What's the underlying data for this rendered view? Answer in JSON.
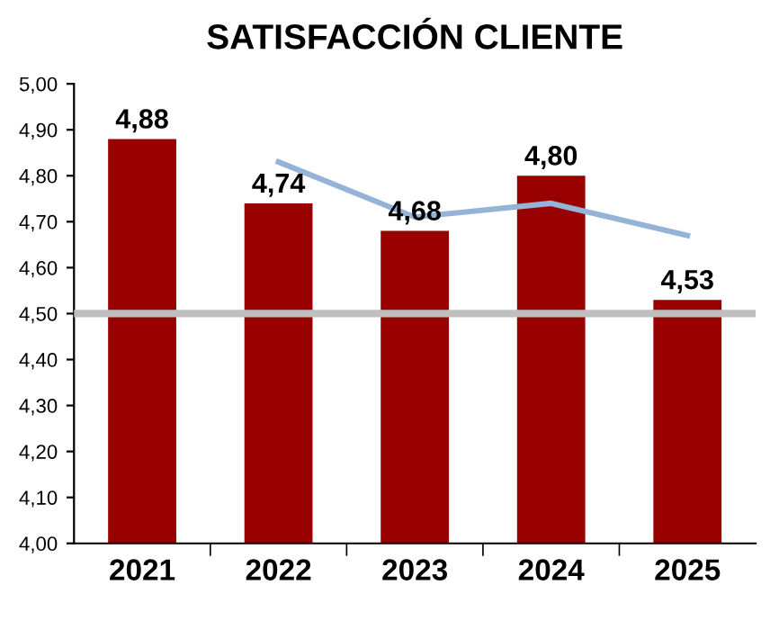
{
  "chart_data": {
    "type": "bar",
    "title": "SATISFACCIÓN CLIENTE",
    "categories": [
      "2021",
      "2022",
      "2023",
      "2024",
      "2025"
    ],
    "series": [
      {
        "color": "#990000",
        "values": [
          4.88,
          4.74,
          4.68,
          4.8,
          4.53
        ],
        "value_labels": [
          "4,88",
          "4,74",
          "4,68",
          "4,80",
          "4,53"
        ]
      },
      {
        "type": "line",
        "color": "#95b3d7",
        "values": [
          null,
          4.83,
          4.71,
          4.74,
          4.67
        ]
      }
    ],
    "ylim": [
      4.0,
      5.0
    ],
    "yticks": [
      {
        "value": 4.0,
        "label": "4,00"
      },
      {
        "value": 4.1,
        "label": "4,10"
      },
      {
        "value": 4.2,
        "label": "4,20"
      },
      {
        "value": 4.3,
        "label": "4,30"
      },
      {
        "value": 4.4,
        "label": "4,40"
      },
      {
        "value": 4.5,
        "label": "4,50"
      },
      {
        "value": 4.6,
        "label": "4,60"
      },
      {
        "value": 4.7,
        "label": "4,70"
      },
      {
        "value": 4.8,
        "label": "4,80"
      },
      {
        "value": 4.9,
        "label": "4,90"
      },
      {
        "value": 5.0,
        "label": "5,00"
      }
    ],
    "ref_lines": [
      {
        "axis": "y",
        "value": 4.5,
        "color": "#bfbfbf"
      }
    ],
    "grid": false,
    "legend": false,
    "marker": "none"
  }
}
